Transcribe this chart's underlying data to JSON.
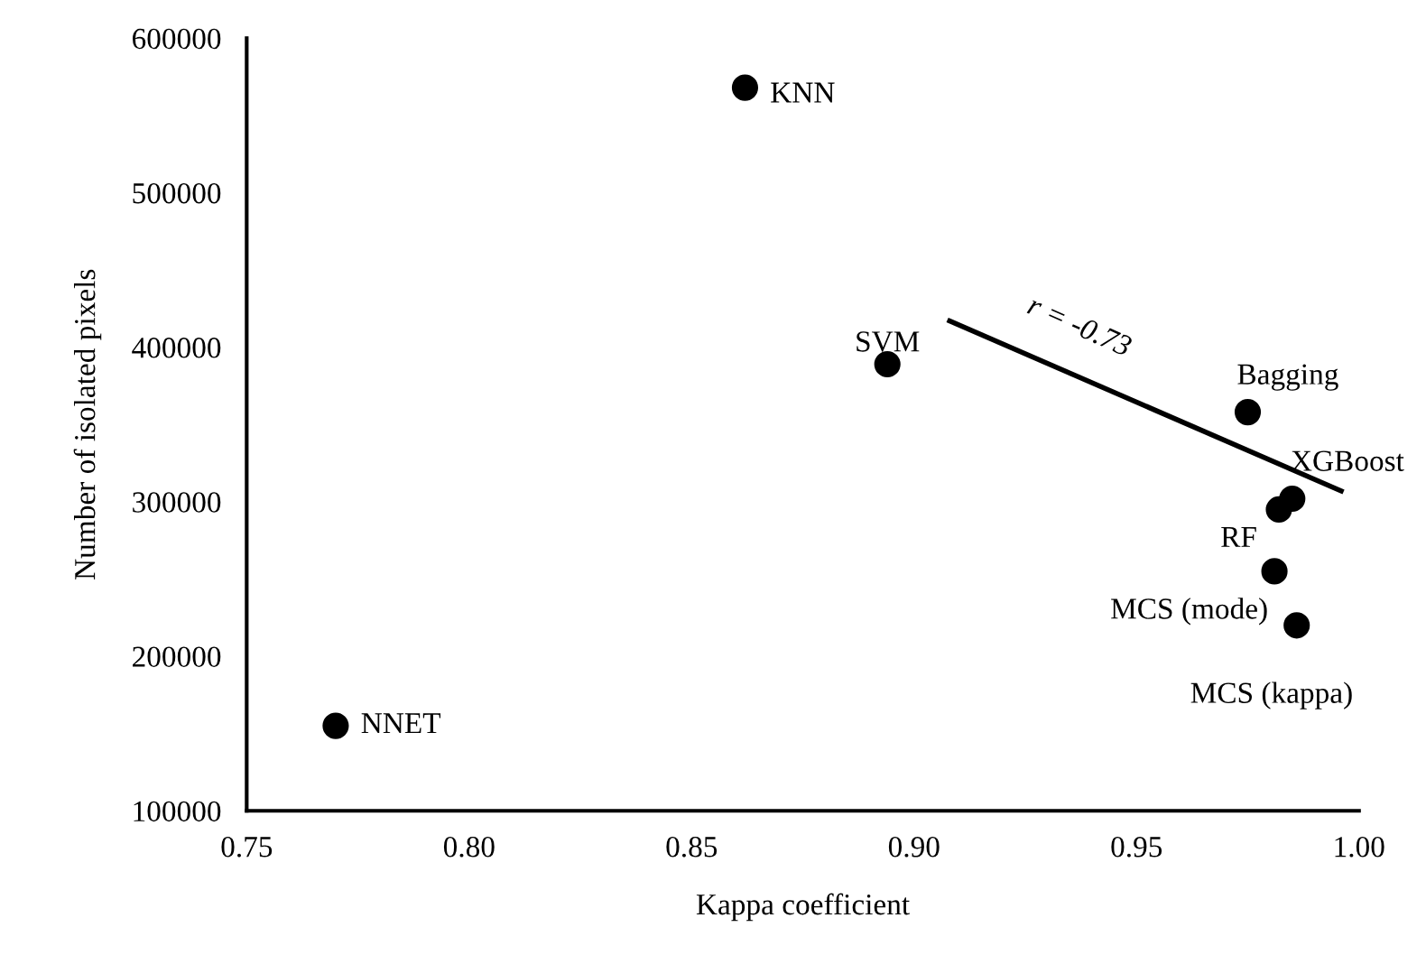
{
  "chart_data": {
    "type": "scatter",
    "xlabel": "Kappa coefficient",
    "ylabel": "Number of isolated pixels",
    "series": [
      {
        "color": "#000000",
        "marker": "circle",
        "x": [
          0.862,
          0.894,
          0.975,
          0.985,
          0.982,
          0.981,
          0.986,
          0.77
        ],
        "values": [
          568000,
          389000,
          358000,
          302000,
          295000,
          255000,
          220000,
          155000
        ]
      },
      {
        "type": "line",
        "color": "#000000",
        "marker": "none",
        "line_style": "solid",
        "x": [
          0.908,
          0.996
        ],
        "values": [
          417000,
          307000
        ]
      }
    ],
    "annotations": [
      {
        "text": "KNN",
        "x": 0.862,
        "y": 568000
      },
      {
        "text": "SVM",
        "x": 0.894,
        "y": 389000
      },
      {
        "text": "Bagging",
        "x": 0.975,
        "y": 358000
      },
      {
        "text": "XGBoost",
        "x": 0.985,
        "y": 302000
      },
      {
        "text": "RF",
        "x": 0.982,
        "y": 295000
      },
      {
        "text": "MCS (mode)",
        "x": 0.981,
        "y": 255000
      },
      {
        "text": "MCS (kappa)",
        "x": 0.986,
        "y": 220000
      },
      {
        "text": "NNET",
        "x": 0.77,
        "y": 155000
      },
      "r = -0.73"
    ],
    "xlim": [
      0.75,
      1.0
    ],
    "xticks": [
      {
        "value": 0.75,
        "label": "0.75"
      },
      {
        "value": 0.8,
        "label": "0.80"
      },
      {
        "value": 0.85,
        "label": "0.85"
      },
      {
        "value": 0.9,
        "label": "0.90"
      },
      {
        "value": 0.95,
        "label": "0.95"
      },
      {
        "value": 1.0,
        "label": "1.00"
      }
    ],
    "ylim": [
      100000,
      600000
    ],
    "yticks": [
      100000,
      200000,
      300000,
      400000,
      500000,
      600000
    ],
    "grid": false,
    "legend": false
  }
}
